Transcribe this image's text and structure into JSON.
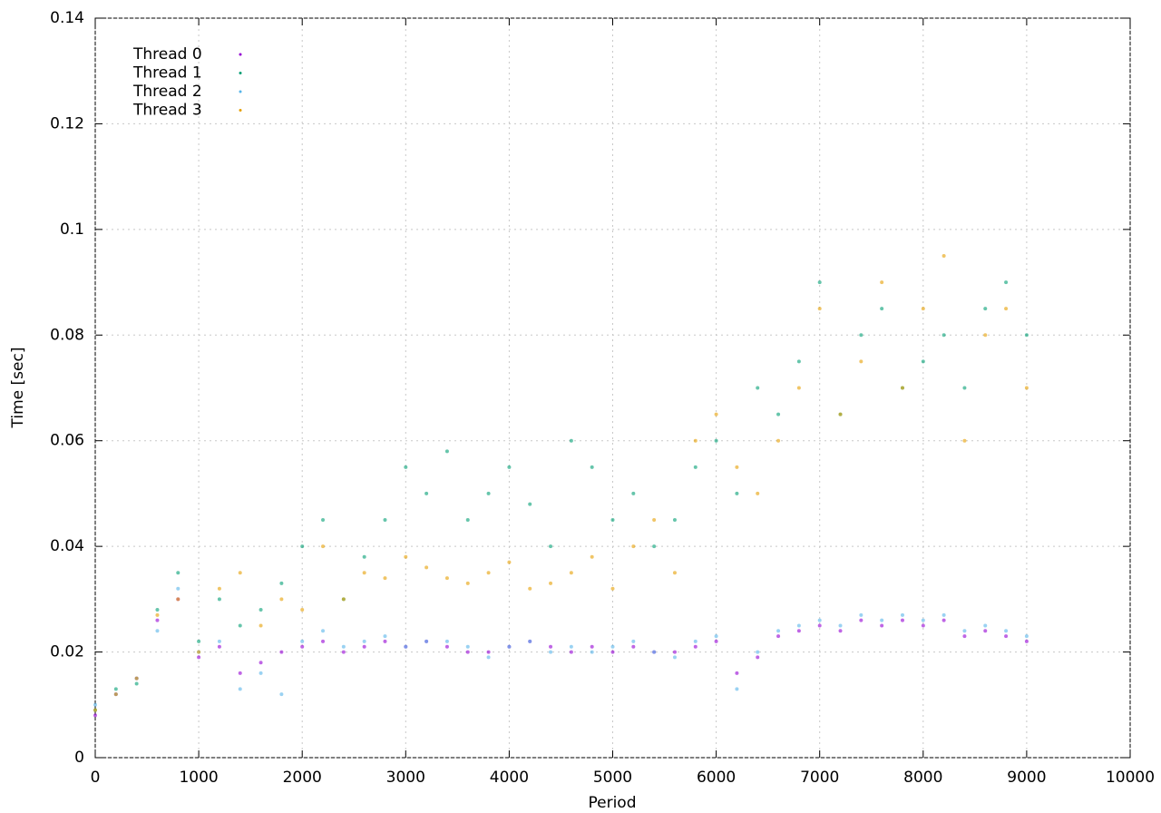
{
  "chart_data": {
    "type": "scatter",
    "xlabel": "Period",
    "ylabel": "Time [sec]",
    "xlim": [
      0,
      10000
    ],
    "ylim": [
      0,
      0.14
    ],
    "xticks": [
      0,
      1000,
      2000,
      3000,
      4000,
      5000,
      6000,
      7000,
      8000,
      9000,
      10000
    ],
    "yticks": [
      0,
      0.02,
      0.04,
      0.06,
      0.08,
      0.1,
      0.12,
      0.14
    ],
    "grid": true,
    "legend": "top-left",
    "x": [
      0,
      200,
      400,
      600,
      800,
      1000,
      1200,
      1400,
      1600,
      1800,
      2000,
      2200,
      2400,
      2600,
      2800,
      3000,
      3200,
      3400,
      3600,
      3800,
      4000,
      4200,
      4400,
      4600,
      4800,
      5000,
      5200,
      5400,
      5600,
      5800,
      6000,
      6200,
      6400,
      6600,
      6800,
      7000,
      7200,
      7400,
      7600,
      7800,
      8000,
      8200,
      8400,
      8600,
      8800,
      9000
    ],
    "series": [
      {
        "name": "Thread 0",
        "color": "#9400d3",
        "values": [
          0.008,
          0.012,
          0.015,
          0.026,
          0.03,
          0.019,
          0.021,
          0.016,
          0.018,
          0.02,
          0.021,
          0.022,
          0.02,
          0.021,
          0.022,
          0.021,
          0.022,
          0.021,
          0.02,
          0.02,
          0.021,
          0.022,
          0.021,
          0.02,
          0.021,
          0.02,
          0.021,
          0.02,
          0.02,
          0.021,
          0.022,
          0.016,
          0.019,
          0.023,
          0.024,
          0.025,
          0.024,
          0.026,
          0.025,
          0.026,
          0.025,
          0.026,
          0.023,
          0.024,
          0.023,
          0.022
        ]
      },
      {
        "name": "Thread 1",
        "color": "#009e73",
        "values": [
          0.009,
          0.013,
          0.014,
          0.028,
          0.035,
          0.022,
          0.03,
          0.025,
          0.028,
          0.033,
          0.04,
          0.045,
          0.03,
          0.038,
          0.045,
          0.055,
          0.05,
          0.058,
          0.045,
          0.05,
          0.055,
          0.048,
          0.04,
          0.06,
          0.055,
          0.045,
          0.05,
          0.04,
          0.045,
          0.055,
          0.06,
          0.05,
          0.07,
          0.065,
          0.075,
          0.09,
          0.065,
          0.08,
          0.085,
          0.07,
          0.075,
          0.08,
          0.07,
          0.085,
          0.09,
          0.08
        ]
      },
      {
        "name": "Thread 2",
        "color": "#56b4e9",
        "values": [
          0.01,
          0.012,
          0.015,
          0.024,
          0.032,
          0.02,
          0.022,
          0.013,
          0.016,
          0.012,
          0.022,
          0.024,
          0.021,
          0.022,
          0.023,
          0.021,
          0.022,
          0.022,
          0.021,
          0.019,
          0.021,
          0.022,
          0.02,
          0.021,
          0.02,
          0.021,
          0.022,
          0.02,
          0.019,
          0.022,
          0.023,
          0.013,
          0.02,
          0.024,
          0.025,
          0.026,
          0.025,
          0.027,
          0.026,
          0.027,
          0.026,
          0.027,
          0.024,
          0.025,
          0.024,
          0.023
        ]
      },
      {
        "name": "Thread 3",
        "color": "#e69f00",
        "values": [
          0.009,
          0.012,
          0.015,
          0.027,
          0.03,
          0.02,
          0.032,
          0.035,
          0.025,
          0.03,
          0.028,
          0.04,
          0.03,
          0.035,
          0.034,
          0.038,
          0.036,
          0.034,
          0.033,
          0.035,
          0.037,
          0.032,
          0.033,
          0.035,
          0.038,
          0.032,
          0.04,
          0.045,
          0.035,
          0.06,
          0.065,
          0.055,
          0.05,
          0.06,
          0.07,
          0.085,
          0.065,
          0.075,
          0.09,
          0.07,
          0.085,
          0.095,
          0.06,
          0.08,
          0.085,
          0.07
        ]
      }
    ]
  }
}
